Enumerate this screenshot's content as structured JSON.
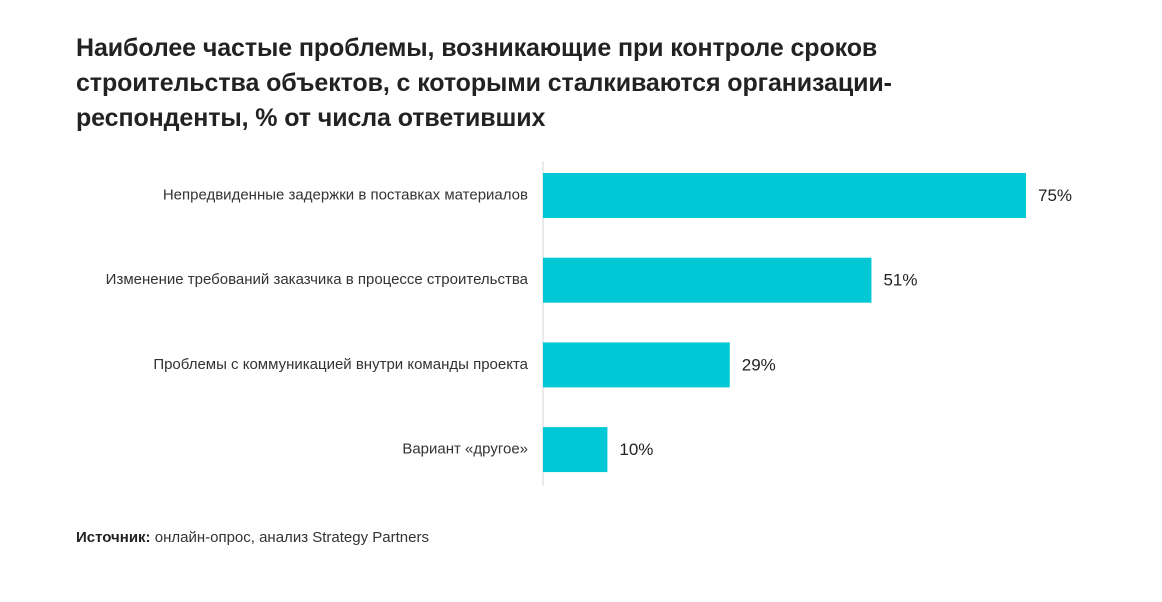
{
  "title": "Наиболее частые проблемы, возникающие при контроле сроков строительства объектов, с которыми сталкиваются организации-респонденты, % от числа ответивших",
  "source": {
    "prefix": "Источник:",
    "text": " онлайн-опрос, анализ Strategy Partners"
  },
  "chart_data": {
    "type": "bar",
    "orientation": "horizontal",
    "categories": [
      "Непредвиденные задержки в поставках материалов",
      "Изменение требований заказчика в процессе строительства",
      "Проблемы с коммуникацией внутри команды проекта",
      "Вариант «другое»"
    ],
    "values": [
      75,
      51,
      29,
      10
    ],
    "value_labels": [
      "75%",
      "51%",
      "29%",
      "10%"
    ],
    "xlim": [
      0,
      75
    ],
    "grid": false,
    "legend": "none",
    "bar_color": "#00c8d4",
    "axis_color": "#d6d6d6"
  }
}
